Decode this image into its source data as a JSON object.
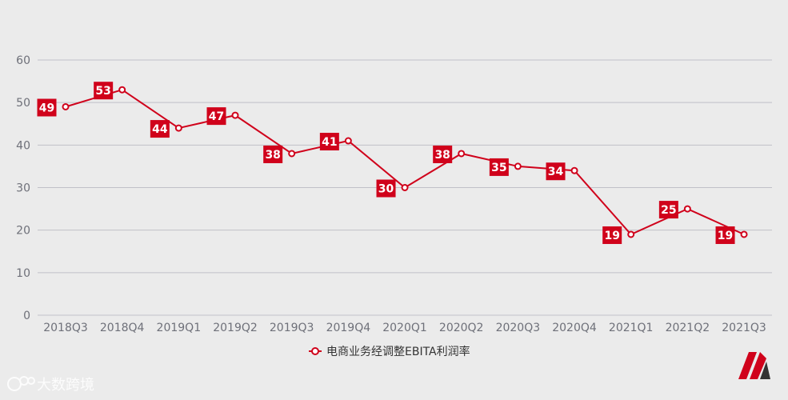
{
  "chart_data": {
    "type": "line",
    "categories": [
      "2018Q3",
      "2018Q4",
      "2019Q1",
      "2019Q2",
      "2019Q3",
      "2019Q4",
      "2020Q1",
      "2020Q2",
      "2020Q3",
      "2020Q4",
      "2021Q1",
      "2021Q2",
      "2021Q3"
    ],
    "series": [
      {
        "name": "电商业务经调整EBITA利润率",
        "values": [
          49,
          53,
          44,
          47,
          38,
          41,
          30,
          38,
          35,
          34,
          19,
          25,
          19
        ]
      }
    ],
    "yticks": [
      0,
      10,
      20,
      30,
      40,
      50,
      60
    ],
    "ylim": [
      0,
      60
    ],
    "grid": true,
    "legend": "bottom-center",
    "colors": {
      "series": "#d0021b",
      "label_bg": "#d0021b",
      "grid": "#c0c0c8",
      "axis_text": "#6e7079",
      "background": "#ebebeb"
    }
  },
  "watermark": {
    "text": "大数跨境"
  }
}
